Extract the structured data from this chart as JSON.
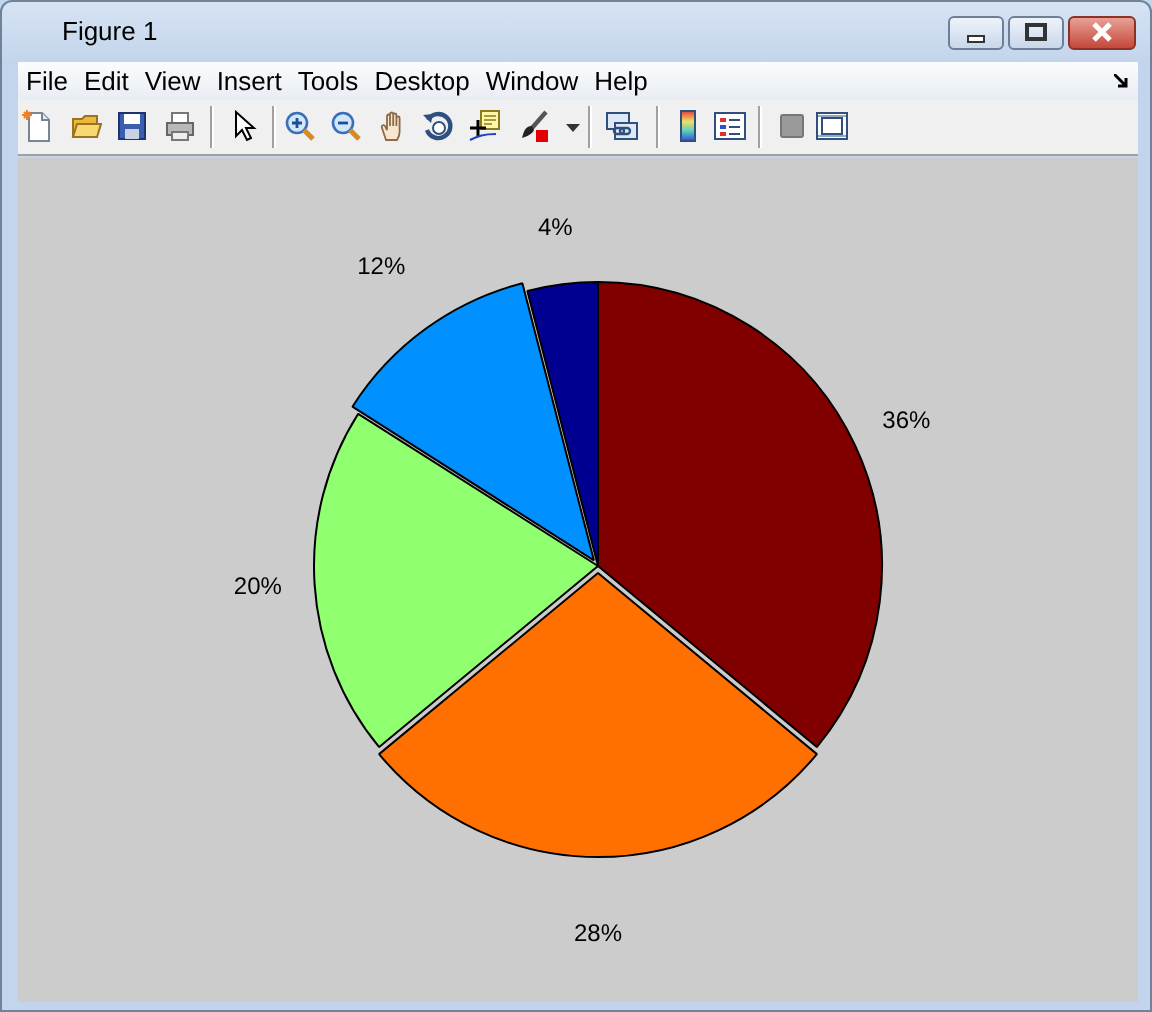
{
  "chart_data": {
    "type": "pie",
    "title": "Figure 1",
    "annotations": [
      "File",
      "Edit",
      "View",
      "Insert",
      "Tools",
      "Desktop",
      "Window",
      "Help"
    ],
    "categories": [
      null,
      null,
      null,
      null,
      null
    ],
    "values": [
      36,
      28,
      20,
      12,
      4
    ],
    "colors": [
      "#800000",
      "#ff7000",
      "#90ff70",
      "#0090ff",
      "#000090"
    ],
    "value_labels": [
      "36%",
      "28%",
      "20%",
      "12%",
      "4%"
    ]
  }
}
